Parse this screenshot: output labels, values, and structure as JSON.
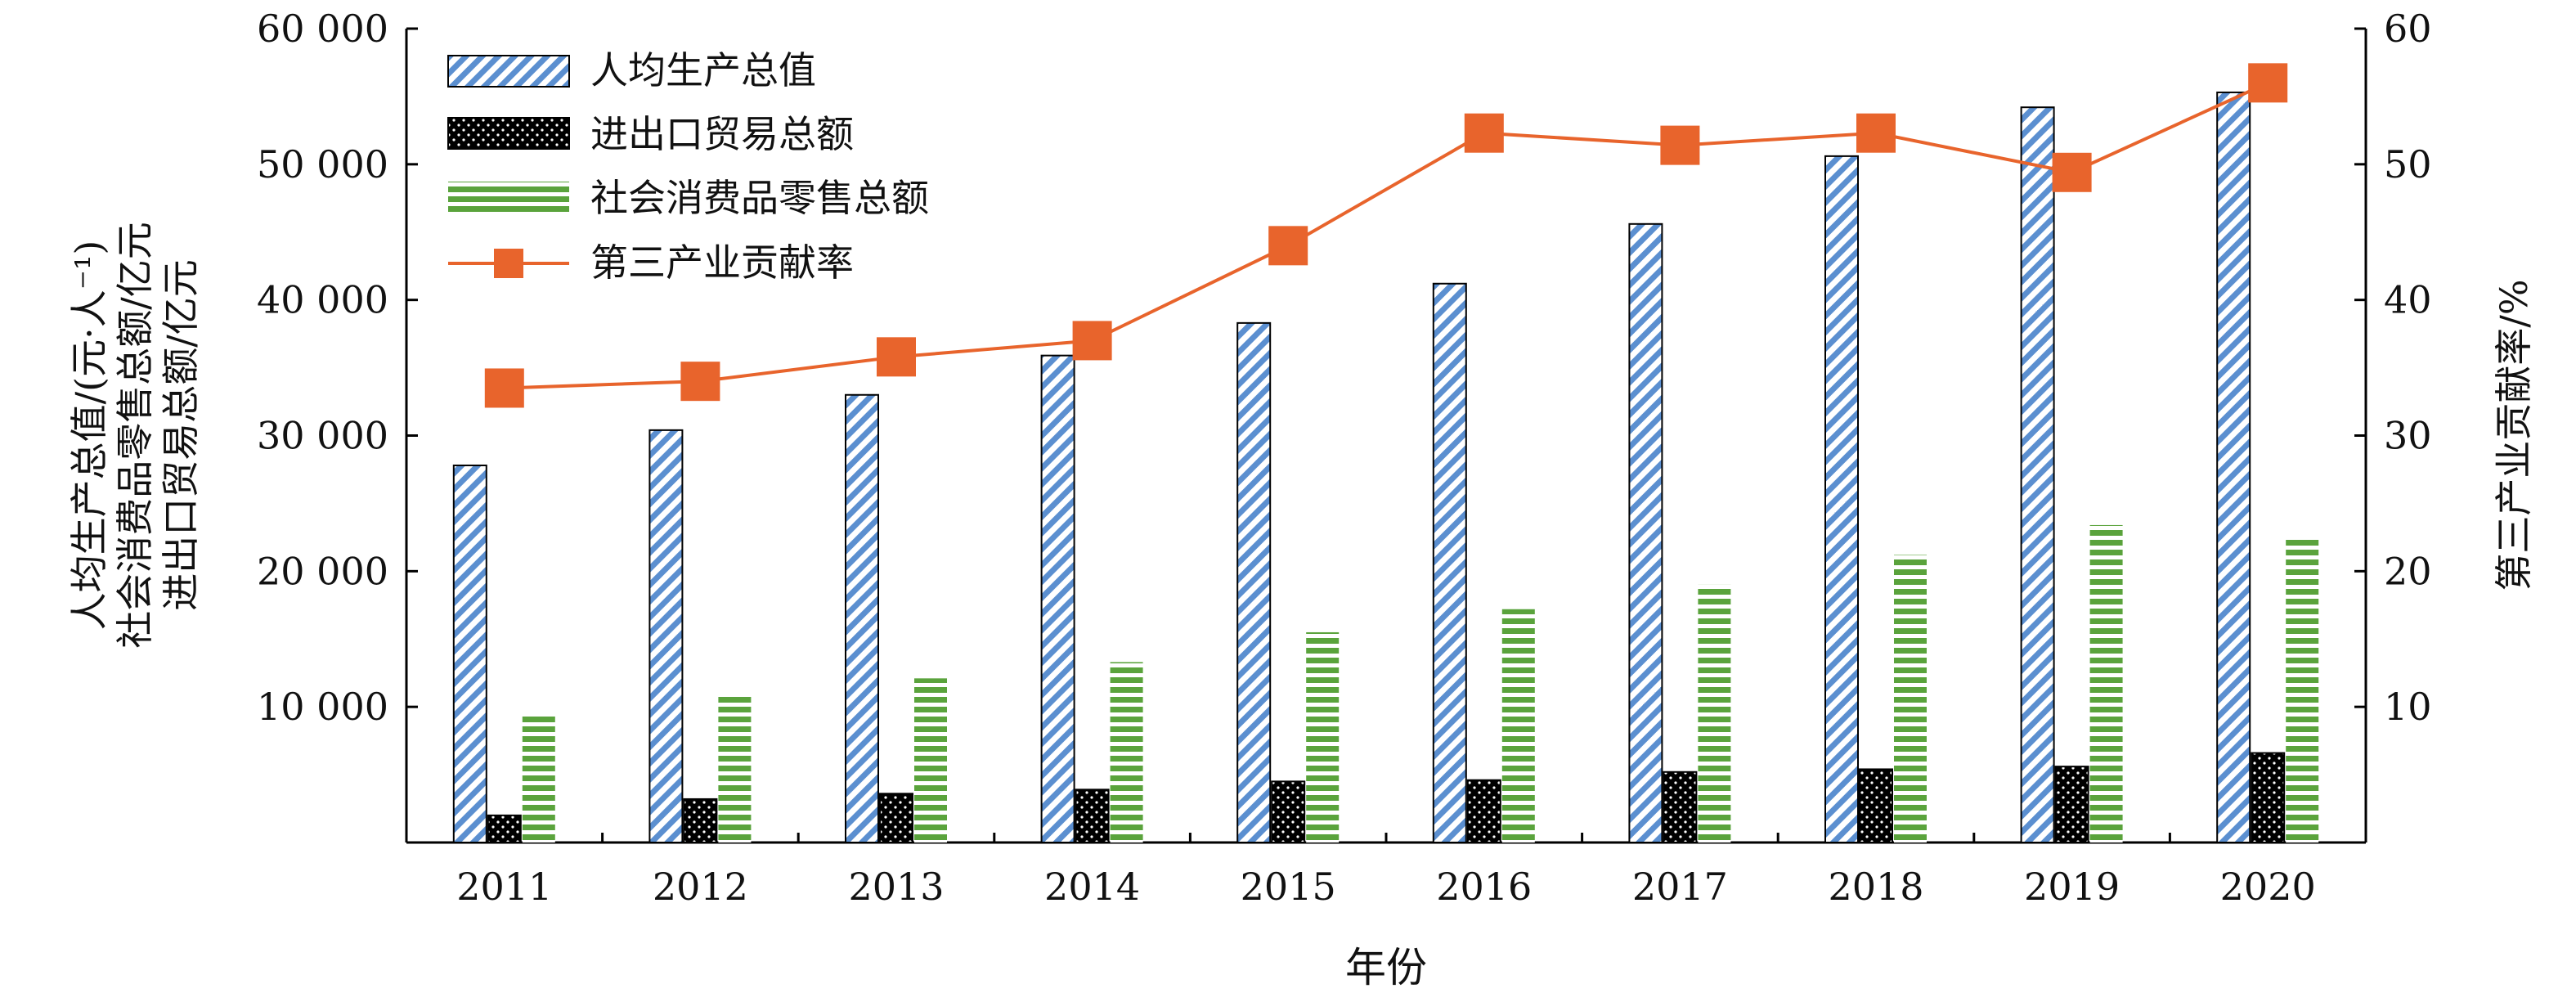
{
  "chart_data": {
    "type": "bar",
    "categories": [
      "2011",
      "2012",
      "2013",
      "2014",
      "2015",
      "2016",
      "2017",
      "2018",
      "2019",
      "2020"
    ],
    "xlabel": "年份",
    "ylabel_left_lines": [
      "人均生产总值/(元·人⁻¹)",
      "社会消费品零售总额/亿元",
      "进出口贸易总额/亿元"
    ],
    "ylabel_right": "第三产业贡献率/%",
    "ylim_left": [
      0,
      60000
    ],
    "ylim_right": [
      0,
      60
    ],
    "yticks_left": [
      "10 000",
      "20 000",
      "30 000",
      "40 000",
      "50 000",
      "60 000"
    ],
    "yticks_right": [
      "10",
      "20",
      "30",
      "40",
      "50",
      "60"
    ],
    "grid": false,
    "legend_position": "top-left",
    "series": [
      {
        "name": "人均生产总值",
        "type": "bar",
        "axis": "left",
        "pattern": "diagonal-stripes",
        "color": "#5b8fd0",
        "values": [
          27800,
          30400,
          33000,
          35900,
          38300,
          41200,
          45600,
          50600,
          54200,
          55300
        ]
      },
      {
        "name": "进出口贸易总额",
        "type": "bar",
        "axis": "left",
        "pattern": "black-dots",
        "color": "#000000",
        "values": [
          2000,
          3200,
          3600,
          3900,
          4500,
          4600,
          5200,
          5400,
          5600,
          6600
        ]
      },
      {
        "name": "社会消费品零售总额",
        "type": "bar",
        "axis": "left",
        "pattern": "horizontal-stripes",
        "color": "#5aa33c",
        "values": [
          9400,
          10800,
          12100,
          13300,
          15500,
          17200,
          19000,
          21200,
          23400,
          22400
        ]
      },
      {
        "name": "第三产业贡献率",
        "type": "line",
        "axis": "right",
        "marker": "square",
        "color": "#e8642c",
        "values": [
          33.5,
          34.0,
          35.8,
          37.0,
          44.0,
          52.3,
          51.4,
          52.3,
          49.4,
          56.0
        ]
      }
    ]
  }
}
